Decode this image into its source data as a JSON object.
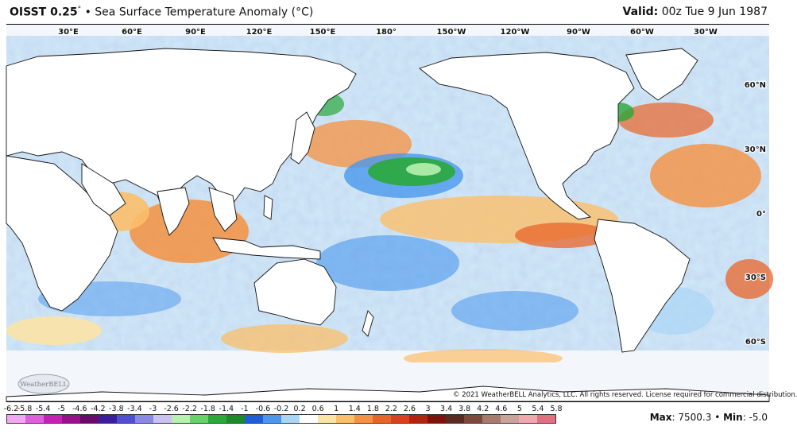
{
  "header": {
    "product": "OISST 0.25",
    "degree_symbol": "°",
    "bullet": "•",
    "field_title": "Sea Surface Temperature Anomaly (°C)",
    "valid_label": "Valid:",
    "valid_time": "00z Tue 9 Jun 1987"
  },
  "map": {
    "longitude_labels": [
      "30°E",
      "60°E",
      "90°E",
      "120°E",
      "150°E",
      "180°",
      "150°W",
      "120°W",
      "90°W",
      "60°W",
      "30°W"
    ],
    "latitude_labels": [
      "60°N",
      "30°N",
      "0°",
      "30°S",
      "60°S"
    ],
    "land_color": "#ffffff",
    "ice_color": "#f3f6fb",
    "coastline_color": "#111111"
  },
  "watermark": {
    "logo_text": "WeatherBELL"
  },
  "copyright": "© 2021 WeatherBELL Analytics, LLC. All rights reserved. License required for commercial distribution.",
  "legend": {
    "ticks": [
      "-6.2",
      "-5.8",
      "-5.4",
      "-5",
      "-4.6",
      "-4.2",
      "-3.8",
      "-3.4",
      "-3",
      "-2.6",
      "-2.2",
      "-1.8",
      "-1.4",
      "-1",
      "-0.6",
      "-0.2",
      "0.2",
      "0.6",
      "1",
      "1.4",
      "1.8",
      "2.2",
      "2.6",
      "3",
      "3.4",
      "3.8",
      "4.2",
      "4.6",
      "5",
      "5.4",
      "5.8"
    ],
    "colors": [
      "#f2a8f0",
      "#e25ee0",
      "#c81fb8",
      "#9a0f8c",
      "#6a0a6a",
      "#3b1e9e",
      "#4f4fd6",
      "#8a8ae6",
      "#c9c2f2",
      "#b8f0b0",
      "#63d36a",
      "#2aa83a",
      "#1b8a2b",
      "#1e5fd8",
      "#4a98ee",
      "#a9d6f7",
      "#ffffff",
      "#fbe3a6",
      "#fbbf6a",
      "#f59140",
      "#ea6428",
      "#d9421c",
      "#b3240f",
      "#7e120a",
      "#5a2a20",
      "#7b4a3c",
      "#a77a6c",
      "#c8a49a",
      "#f0a8b0",
      "#e17080"
    ]
  },
  "stats": {
    "max_label": "Max",
    "max_value": ": 7500.3",
    "separator": "•",
    "min_label": "Min",
    "min_value": ": -5.0"
  }
}
